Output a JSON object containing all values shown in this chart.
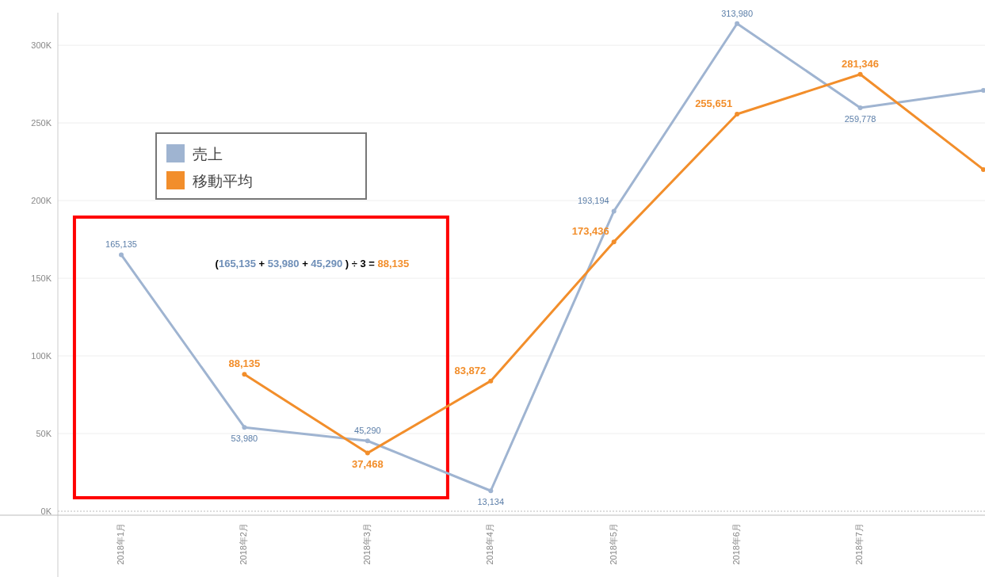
{
  "chart_data": {
    "type": "line",
    "categories": [
      "2018年1月",
      "2018年2月",
      "2018年3月",
      "2018年4月",
      "2018年5月",
      "2018年6月",
      "2018年7月",
      null
    ],
    "series": [
      {
        "name": "売上",
        "color": "#9fb4d1",
        "values": [
          165135,
          53980,
          45290,
          13134,
          193194,
          313980,
          259778,
          271000
        ],
        "value_labels": [
          "165,135",
          "53,980",
          "45,290",
          "13,134",
          "193,194",
          "313,980",
          "259,778",
          null
        ]
      },
      {
        "name": "移動平均",
        "color": "#f28e2b",
        "values": [
          null,
          88135,
          37468,
          83872,
          173436,
          255651,
          281346,
          220000
        ],
        "value_labels": [
          null,
          "88,135",
          "37,468",
          "83,872",
          "173,436",
          "255,651",
          "281,346",
          null
        ]
      }
    ],
    "ylim": [
      0,
      321000
    ],
    "yticks": [
      {
        "value": 0,
        "label": "0K"
      },
      {
        "value": 50000,
        "label": "50K"
      },
      {
        "value": 100000,
        "label": "100K"
      },
      {
        "value": 150000,
        "label": "150K"
      },
      {
        "value": 200000,
        "label": "200K"
      },
      {
        "value": 250000,
        "label": "250K"
      },
      {
        "value": 300000,
        "label": "300K"
      }
    ],
    "grid": "y",
    "legend": "top left",
    "marker": "circle",
    "annotations": [
      "(165,135 + 53,980 + 45,290 ) ÷ 3 = 88,135"
    ]
  }
}
